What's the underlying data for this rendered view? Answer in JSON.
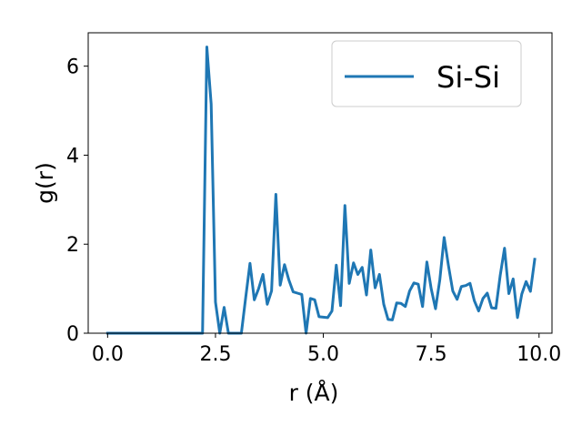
{
  "chart_data": {
    "type": "line",
    "xlabel": "r (Å)",
    "ylabel": "g(r)",
    "xlim": [
      -0.45,
      10.3
    ],
    "ylim": [
      0,
      6.75
    ],
    "xticks": [
      0.0,
      2.5,
      5.0,
      7.5,
      10.0
    ],
    "xtick_labels": [
      "0.0",
      "2.5",
      "5.0",
      "7.5",
      "10.0"
    ],
    "yticks": [
      0,
      2,
      4,
      6
    ],
    "ytick_labels": [
      "0",
      "2",
      "4",
      "6"
    ],
    "grid": false,
    "legend_position": "top-right",
    "series": [
      {
        "name": "Si-Si",
        "color": "#1f77b4",
        "x": [
          0.0,
          0.1,
          0.2,
          0.3,
          0.4,
          0.5,
          0.6,
          0.7,
          0.8,
          0.9,
          1.0,
          1.1,
          1.2,
          1.3,
          1.4,
          1.5,
          1.6,
          1.7,
          1.8,
          1.9,
          2.0,
          2.1,
          2.2,
          2.3,
          2.4,
          2.5,
          2.6,
          2.7,
          2.8,
          2.9,
          3.0,
          3.1,
          3.2,
          3.3,
          3.4,
          3.5,
          3.6,
          3.7,
          3.8,
          3.9,
          4.0,
          4.1,
          4.2,
          4.3,
          4.4,
          4.5,
          4.6,
          4.7,
          4.8,
          4.9,
          5.0,
          5.1,
          5.2,
          5.3,
          5.4,
          5.5,
          5.6,
          5.7,
          5.8,
          5.9,
          6.0,
          6.1,
          6.2,
          6.3,
          6.4,
          6.5,
          6.6,
          6.7,
          6.8,
          6.9,
          7.0,
          7.1,
          7.2,
          7.3,
          7.4,
          7.5,
          7.6,
          7.7,
          7.8,
          7.9,
          8.0,
          8.1,
          8.2,
          8.3,
          8.4,
          8.5,
          8.6,
          8.7,
          8.8,
          8.9,
          9.0,
          9.1,
          9.2,
          9.3,
          9.4,
          9.5,
          9.6,
          9.7,
          9.8,
          9.9
        ],
        "y": [
          0,
          0,
          0,
          0,
          0,
          0,
          0,
          0,
          0,
          0,
          0,
          0,
          0,
          0,
          0,
          0,
          0,
          0,
          0,
          0,
          0,
          0,
          0,
          6.43,
          5.15,
          0.7,
          0,
          0.58,
          0,
          0,
          0,
          0,
          0.8,
          1.57,
          0.75,
          1.0,
          1.32,
          0.65,
          0.95,
          3.12,
          1.08,
          1.54,
          1.2,
          0.93,
          0.9,
          0.87,
          0,
          0.78,
          0.75,
          0.37,
          0.36,
          0.35,
          0.5,
          1.53,
          0.62,
          2.87,
          1.12,
          1.58,
          1.32,
          1.48,
          0.86,
          1.87,
          1.02,
          1.32,
          0.65,
          0.31,
          0.3,
          0.68,
          0.67,
          0.6,
          0.95,
          1.13,
          1.1,
          0.6,
          1.6,
          1.0,
          0.55,
          1.2,
          2.15,
          1.52,
          0.95,
          0.76,
          1.05,
          1.07,
          1.12,
          0.73,
          0.5,
          0.78,
          0.9,
          0.57,
          0.56,
          1.3,
          1.91,
          0.89,
          1.22,
          0.35,
          0.88,
          1.16,
          0.94,
          1.66
        ]
      }
    ]
  }
}
